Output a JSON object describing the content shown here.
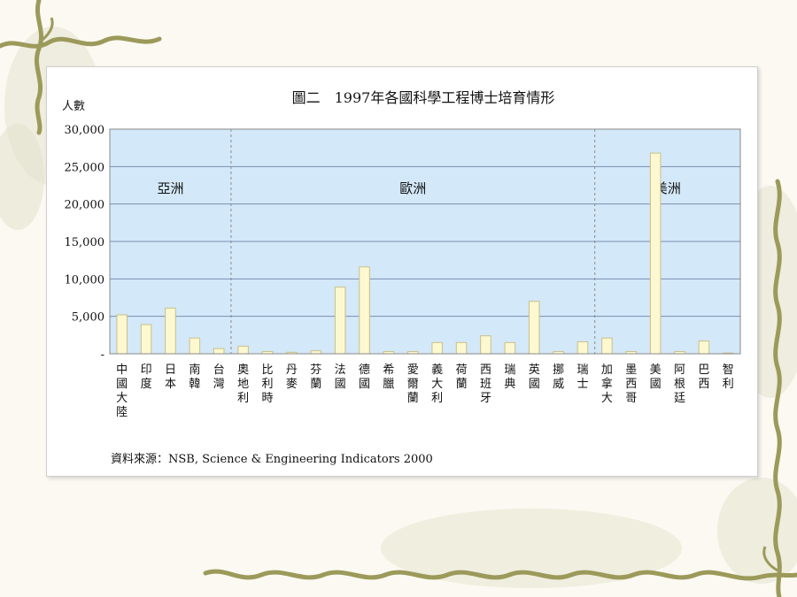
{
  "chart_data": {
    "type": "bar",
    "title": "圖二　1997年各國科學工程博士培育情形",
    "ylabel": "人數",
    "ylim": [
      0,
      30000
    ],
    "yticks": [
      "-",
      "5,000",
      "10,000",
      "15,000",
      "20,000",
      "25,000",
      "30,000"
    ],
    "grid": true,
    "colors": {
      "plot_bg": "#d3e8f8",
      "bar_fill": "#fdf8cf",
      "bar_stroke": "#c9c08a",
      "grid": "#7a8fb3"
    },
    "regions": [
      {
        "name": "亞洲",
        "start": 0,
        "end": 4
      },
      {
        "name": "歐洲",
        "start": 5,
        "end": 19
      },
      {
        "name": "美洲",
        "start": 20,
        "end": 25
      }
    ],
    "categories": [
      "中國大陸",
      "印度",
      "日本",
      "南韓",
      "台灣",
      "奧地利",
      "比利時",
      "丹麥",
      "芬蘭",
      "法國",
      "德國",
      "希臘",
      "愛爾蘭",
      "義大利",
      "荷蘭",
      "西班牙",
      "瑞典",
      "英國",
      "挪威",
      "瑞士",
      "加拿大",
      "墨西哥",
      "美國",
      "阿根廷",
      "巴西",
      "智利"
    ],
    "values": [
      5200,
      3900,
      6100,
      2100,
      700,
      1000,
      300,
      200,
      400,
      8900,
      11600,
      300,
      300,
      1500,
      1500,
      2400,
      1500,
      7000,
      300,
      1600,
      2100,
      300,
      26800,
      300,
      1700,
      100
    ]
  },
  "source": "資料來源：NSB, Science & Engineering Indicators 2000"
}
